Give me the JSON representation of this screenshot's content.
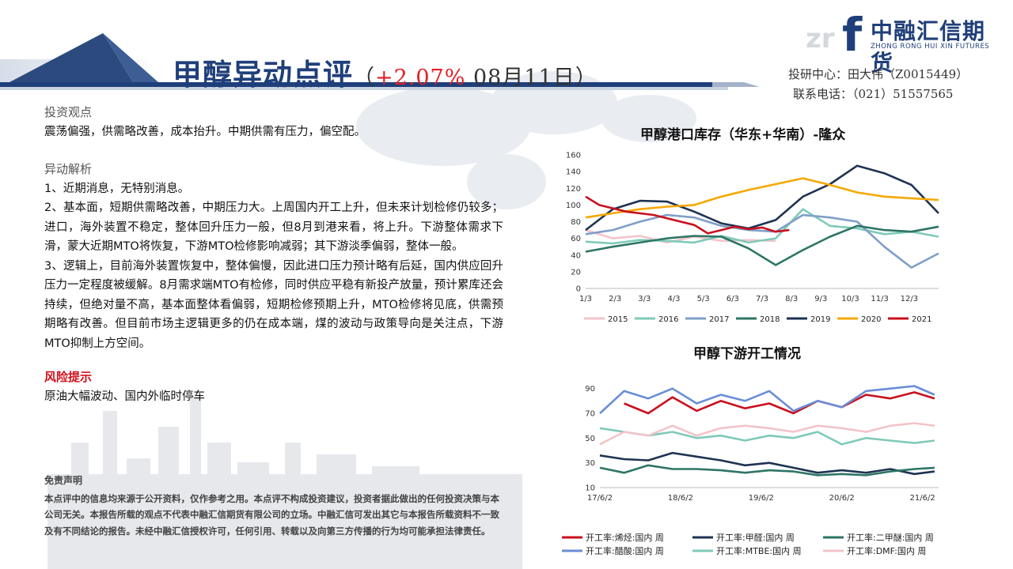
{
  "header": {
    "title_main": "甲醇异动点评",
    "title_open": "（",
    "title_change": "+2.07%",
    "title_date": " 08月11日",
    "title_close": "）",
    "contact_line1": "投研中心：田大伟（Z0015449）",
    "contact_line2": "联系电话：（021）51557565"
  },
  "logo": {
    "mark": "f",
    "name_cn": "中融汇信期货",
    "name_en": "ZHONG RONG HUI XIN FUTURES",
    "watermark_text": "zr"
  },
  "content": {
    "view_title": "投资观点",
    "view_text": "震荡偏强，供需略改善，成本抬升。中期供需有压力，偏空配。",
    "analysis_title": "异动解析",
    "analysis_p1": "1、近期消息，无特别消息。",
    "analysis_p2": "2、基本面，短期供需略改善，中期压力大。上周国内开工上升，但未来计划检修仍较多；进口，海外装置不稳定，整体回升压力一般，但8月到港来看，将上升。下游整体需求下滑，蒙大近期MTO将恢复，下游MTO检修影响减弱；其下游淡季偏弱，整体一般。",
    "analysis_p3": "3、逻辑上，目前海外装置恢复中，整体偏慢，因此进口压力预计略有后延，国内供应回升压力一定程度被缓解。8月需求端MTO有检修，同时供应平稳有新投产放量，预计累库还会持续，但绝对量不高，基本面整体看偏弱，短期检修预期上升，MTO检修将见底，供需预期略有改善。但目前市场主逻辑更多的仍在成本端，煤的波动与政策导向是关注点，下游MTO抑制上方空间。",
    "risk_title": "风险提示",
    "risk_text": "原油大幅波动、国内外临时停车"
  },
  "disclaimer": {
    "title": "免责声明",
    "text": "本点评中的信息均来源于公开资料，仅作参考之用。本点评不构成投资建议，投资者据此做出的任何投资决策与本公司无关。本报告所载的观点不代表中融汇信期货有限公司的立场。中融汇信可发出其它与本报告所载资料不一致及有不同结论的报告。未经中融汇信授权许可，任何引用、转载以及向第三方传播的行为均可能承担法律责任。"
  },
  "chart_data": [
    {
      "type": "line",
      "title": "甲醇港口库存（华东+华南）-隆众",
      "xlabel": "",
      "ylabel": "",
      "x_ticks": [
        "1/3",
        "2/3",
        "3/3",
        "4/3",
        "5/3",
        "6/3",
        "7/3",
        "8/3",
        "9/3",
        "10/3",
        "11/3",
        "12/3"
      ],
      "ylim": [
        0,
        160
      ],
      "y_ticks": [
        0,
        20,
        40,
        60,
        80,
        100,
        120,
        140,
        160
      ],
      "x_range": [
        0,
        52
      ],
      "grid": false,
      "legend": "bottom",
      "series": [
        {
          "name": "2015",
          "color": "#f2c4c8",
          "x": [
            0,
            4,
            8,
            12,
            16,
            20,
            24,
            28
          ],
          "y": [
            70,
            60,
            63,
            55,
            62,
            57,
            58,
            57
          ]
        },
        {
          "name": "2016",
          "color": "#7fcab8",
          "x": [
            0,
            4,
            8,
            12,
            16,
            20,
            24,
            28,
            32,
            36,
            40,
            44,
            48,
            52
          ],
          "y": [
            56,
            54,
            58,
            57,
            55,
            63,
            55,
            60,
            95,
            75,
            72,
            65,
            68,
            62
          ]
        },
        {
          "name": "2017",
          "color": "#7f9fc8",
          "x": [
            0,
            4,
            8,
            12,
            16,
            20,
            24,
            28,
            32,
            36,
            40,
            44,
            48,
            52
          ],
          "y": [
            65,
            70,
            80,
            88,
            85,
            75,
            70,
            68,
            88,
            85,
            80,
            50,
            25,
            42
          ]
        },
        {
          "name": "2018",
          "color": "#2d7565",
          "x": [
            0,
            4,
            8,
            12,
            16,
            20,
            24,
            28,
            32,
            36,
            40,
            44,
            48,
            52
          ],
          "y": [
            44,
            50,
            55,
            60,
            63,
            62,
            48,
            28,
            46,
            62,
            75,
            70,
            68,
            74
          ]
        },
        {
          "name": "2019",
          "color": "#1e3352",
          "x": [
            0,
            4,
            8,
            12,
            16,
            20,
            24,
            28,
            32,
            36,
            40,
            44,
            48,
            52
          ],
          "y": [
            70,
            95,
            105,
            104,
            92,
            78,
            72,
            82,
            110,
            125,
            147,
            138,
            124,
            90
          ]
        },
        {
          "name": "2020",
          "color": "#f5a800",
          "x": [
            0,
            4,
            8,
            12,
            16,
            20,
            24,
            28,
            32,
            36,
            40,
            44,
            48,
            52
          ],
          "y": [
            85,
            90,
            95,
            98,
            100,
            110,
            118,
            125,
            132,
            124,
            115,
            110,
            108,
            106
          ]
        },
        {
          "name": "2021",
          "color": "#c8101e",
          "x": [
            0,
            2,
            6,
            10,
            13,
            16,
            18,
            20,
            22,
            24,
            26,
            28,
            30
          ],
          "y": [
            110,
            100,
            92,
            88,
            82,
            76,
            66,
            70,
            74,
            71,
            73,
            68,
            70
          ]
        }
      ]
    },
    {
      "type": "line",
      "title": "甲醇下游开工情况",
      "xlabel": "",
      "ylabel": "",
      "x_ticks": [
        "17/6/2",
        "18/6/2",
        "19/6/2",
        "20/6/2",
        "21/6/2"
      ],
      "ylim": [
        10,
        100
      ],
      "y_ticks": [
        10,
        30,
        50,
        70,
        90
      ],
      "x_range": [
        0,
        4.2
      ],
      "grid": false,
      "legend": "bottom",
      "series": [
        {
          "name": "开工率:烯烃:国内 周",
          "color": "#c8101e",
          "x": [
            0.3,
            0.6,
            0.9,
            1.2,
            1.5,
            1.8,
            2.1,
            2.4,
            2.7,
            3.0,
            3.3,
            3.6,
            3.9,
            4.15
          ],
          "y": [
            78,
            70,
            83,
            72,
            80,
            74,
            78,
            70,
            80,
            75,
            85,
            82,
            87,
            82
          ]
        },
        {
          "name": "开工率:甲醛:国内 周",
          "color": "#1e3352",
          "x": [
            0,
            0.3,
            0.6,
            0.9,
            1.2,
            1.5,
            1.8,
            2.1,
            2.4,
            2.7,
            3.0,
            3.3,
            3.6,
            3.9,
            4.15
          ],
          "y": [
            36,
            33,
            32,
            38,
            35,
            32,
            28,
            30,
            26,
            22,
            24,
            22,
            25,
            21,
            23
          ]
        },
        {
          "name": "开工率:二甲醚:国内 周",
          "color": "#2d7565",
          "x": [
            0,
            0.3,
            0.6,
            0.9,
            1.2,
            1.5,
            1.8,
            2.1,
            2.4,
            2.7,
            3.0,
            3.3,
            3.6,
            3.9,
            4.15
          ],
          "y": [
            26,
            22,
            28,
            25,
            25,
            24,
            22,
            24,
            23,
            20,
            21,
            20,
            23,
            25,
            26
          ]
        },
        {
          "name": "开工率:醋酸:国内 周",
          "color": "#6a8ed6",
          "x": [
            0,
            0.3,
            0.6,
            0.9,
            1.2,
            1.5,
            1.8,
            2.1,
            2.4,
            2.7,
            3.0,
            3.3,
            3.6,
            3.9,
            4.15
          ],
          "y": [
            70,
            88,
            82,
            90,
            78,
            85,
            80,
            88,
            72,
            80,
            75,
            88,
            90,
            92,
            85
          ]
        },
        {
          "name": "开工率:MTBE:国内 周",
          "color": "#7fcab8",
          "x": [
            0,
            0.3,
            0.6,
            0.9,
            1.2,
            1.5,
            1.8,
            2.1,
            2.4,
            2.7,
            3.0,
            3.3,
            3.6,
            3.9,
            4.15
          ],
          "y": [
            58,
            55,
            52,
            55,
            50,
            52,
            48,
            52,
            50,
            55,
            45,
            50,
            48,
            46,
            48
          ]
        },
        {
          "name": "开工率:DMF:国内 周",
          "color": "#f2c4c8",
          "x": [
            0,
            0.3,
            0.6,
            0.9,
            1.2,
            1.5,
            1.8,
            2.1,
            2.4,
            2.7,
            3.0,
            3.3,
            3.6,
            3.9,
            4.15
          ],
          "y": [
            45,
            55,
            52,
            60,
            52,
            58,
            60,
            58,
            55,
            60,
            58,
            55,
            60,
            62,
            60
          ]
        }
      ]
    }
  ]
}
